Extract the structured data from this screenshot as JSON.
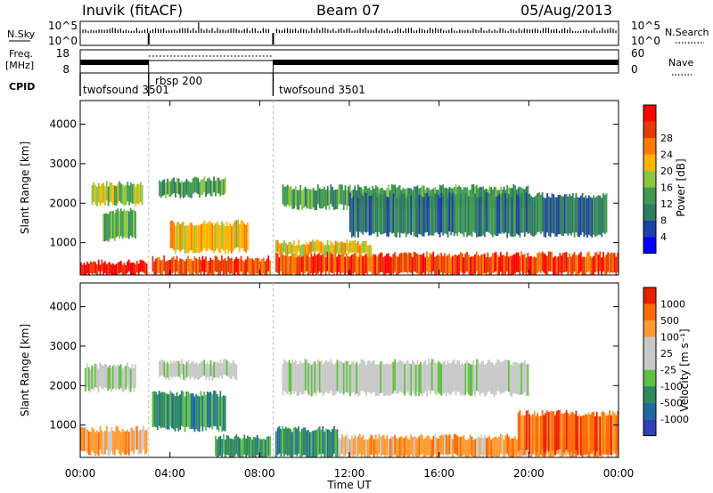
{
  "header": {
    "station": "Inuvik (fitACF)",
    "beam": "Beam 07",
    "date": "05/Aug/2013"
  },
  "x_axis": {
    "label": "Time UT",
    "ticks": [
      "00:00",
      "04:00",
      "08:00",
      "12:00",
      "16:00",
      "20:00",
      "00:00"
    ],
    "range_hours": [
      0,
      24
    ]
  },
  "y_axis": {
    "label": "Slant Range [km]",
    "ticks": [
      1000,
      2000,
      3000,
      4000
    ],
    "range_km": [
      180,
      4600
    ]
  },
  "strips": {
    "nsky": {
      "left_label": "N.Sky",
      "left_ticks": [
        "10^5",
        "10^0"
      ],
      "right_label": "N.Search",
      "right_ticks": [
        "10^5",
        "10^0"
      ]
    },
    "freq": {
      "left_label_1": "Freq.",
      "left_label_2": "[MHz]",
      "left_ticks": [
        "18",
        "8"
      ],
      "right_label": "Nave",
      "right_ticks": [
        "60",
        "0"
      ]
    },
    "cpid": {
      "label": "CPID",
      "segments": [
        "twofsound 3501",
        "rbsp 200",
        "twofsound 3501"
      ],
      "mode_changes_hours": [
        3.05,
        8.6
      ]
    }
  },
  "colors": {
    "power": [
      "#0000ff",
      "#1f3fa8",
      "#2f7a63",
      "#3f9a4f",
      "#8cc63f",
      "#ffb300",
      "#ff7a00",
      "#e83a00",
      "#ff0000"
    ],
    "velocity": [
      "#2f3fb5",
      "#1f6aa5",
      "#2e8a5a",
      "#5fc040",
      "#c8c8c8",
      "#c8c8c8",
      "#ff9a30",
      "#ff6a00",
      "#e82000"
    ]
  },
  "chart_data": [
    {
      "type": "heatmap",
      "name": "power",
      "colorbar": {
        "label": "Power [dB]",
        "ticks": [
          "4",
          "8",
          "12",
          "16",
          "20",
          "24",
          "28"
        ]
      },
      "x_range_hours": [
        0,
        24
      ],
      "y_range_km": [
        180,
        4600
      ],
      "bands": [
        {
          "t0": 0.0,
          "t1": 3.0,
          "r0": 200,
          "r1": 500,
          "level": 8
        },
        {
          "t0": 0.5,
          "t1": 2.8,
          "r0": 2000,
          "r1": 2500,
          "level": 4
        },
        {
          "t0": 1.0,
          "t1": 2.5,
          "r0": 1100,
          "r1": 1800,
          "level": 3
        },
        {
          "t0": 3.2,
          "t1": 8.5,
          "r0": 200,
          "r1": 600,
          "level": 7
        },
        {
          "t0": 4.0,
          "t1": 7.5,
          "r0": 800,
          "r1": 1500,
          "level": 5
        },
        {
          "t0": 3.5,
          "t1": 6.5,
          "r0": 2200,
          "r1": 2600,
          "level": 3
        },
        {
          "t0": 8.7,
          "t1": 24.0,
          "r0": 200,
          "r1": 700,
          "level": 7
        },
        {
          "t0": 8.7,
          "t1": 13.0,
          "r0": 700,
          "r1": 1000,
          "level": 5
        },
        {
          "t0": 9.0,
          "t1": 20.0,
          "r0": 1900,
          "r1": 2400,
          "level": 3
        },
        {
          "t0": 12.0,
          "t1": 23.5,
          "r0": 1200,
          "r1": 2200,
          "level": 2
        }
      ]
    },
    {
      "type": "heatmap",
      "name": "velocity",
      "colorbar": {
        "label": "Velocity [m s⁻¹]",
        "ticks": [
          "1000",
          "500",
          "100",
          "25",
          "-25",
          "-100",
          "-500",
          "-1000"
        ]
      },
      "x_range_hours": [
        0,
        24
      ],
      "y_range_km": [
        180,
        4600
      ],
      "bands": [
        {
          "t0": 0.0,
          "t1": 3.0,
          "r0": 300,
          "r1": 900,
          "level": 6
        },
        {
          "t0": 0.2,
          "t1": 2.5,
          "r0": 1900,
          "r1": 2500,
          "level": 4
        },
        {
          "t0": 3.2,
          "t1": 6.5,
          "r0": 900,
          "r1": 1800,
          "level": 2
        },
        {
          "t0": 3.5,
          "t1": 7.0,
          "r0": 2200,
          "r1": 2600,
          "level": 4
        },
        {
          "t0": 6.0,
          "t1": 8.5,
          "r0": 200,
          "r1": 700,
          "level": 2
        },
        {
          "t0": 8.7,
          "t1": 11.5,
          "r0": 200,
          "r1": 900,
          "level": 2
        },
        {
          "t0": 9.0,
          "t1": 20.0,
          "r0": 1800,
          "r1": 2600,
          "level": 4
        },
        {
          "t0": 11.5,
          "t1": 24.0,
          "r0": 200,
          "r1": 700,
          "level": 6
        },
        {
          "t0": 19.5,
          "t1": 24.0,
          "r0": 300,
          "r1": 1300,
          "level": 7
        }
      ]
    }
  ]
}
